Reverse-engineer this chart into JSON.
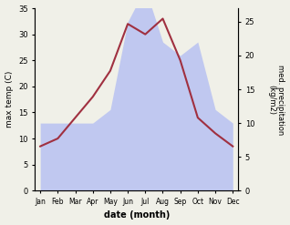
{
  "months": [
    "Jan",
    "Feb",
    "Mar",
    "Apr",
    "May",
    "Jun",
    "Jul",
    "Aug",
    "Sep",
    "Oct",
    "Nov",
    "Dec"
  ],
  "temp": [
    8.5,
    10.0,
    14.0,
    18.0,
    23.0,
    32.0,
    30.0,
    33.0,
    25.0,
    14.0,
    11.0,
    8.5
  ],
  "precip": [
    10.0,
    10.0,
    10.0,
    10.0,
    12.0,
    25.0,
    30.0,
    22.0,
    20.0,
    22.0,
    12.0,
    10.0
  ],
  "temp_color": "#a03040",
  "precip_fill_color": "#c0c8f0",
  "ylabel_left": "max temp (C)",
  "ylabel_right": "med. precipitation\n(kg/m2)",
  "xlabel": "date (month)",
  "ylim_left": [
    0,
    35
  ],
  "ylim_right": [
    0,
    27
  ],
  "yticks_left": [
    0,
    5,
    10,
    15,
    20,
    25,
    30,
    35
  ],
  "yticks_right": [
    0,
    5,
    10,
    15,
    20,
    25
  ]
}
